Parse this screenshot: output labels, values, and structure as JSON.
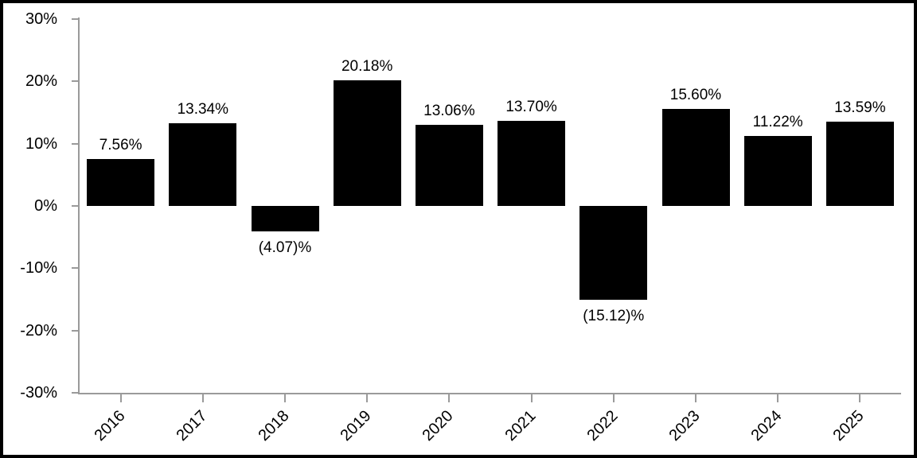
{
  "chart_data": {
    "type": "bar",
    "title": "",
    "xlabel": "",
    "ylabel": "",
    "categories": [
      "2016",
      "2017",
      "2018",
      "2019",
      "2020",
      "2021",
      "2022",
      "2023",
      "2024",
      "2025"
    ],
    "values": [
      7.56,
      13.34,
      -4.07,
      20.18,
      13.06,
      13.7,
      -15.12,
      15.6,
      11.22,
      13.59
    ],
    "value_labels": [
      "7.56%",
      "13.34%",
      "(4.07)%",
      "20.18%",
      "13.06%",
      "13.70%",
      "(15.12)%",
      "15.60%",
      "11.22%",
      "13.59%"
    ],
    "ylim": [
      -30,
      30
    ],
    "yticks": [
      30,
      20,
      10,
      0,
      -10,
      -20,
      -30
    ],
    "ytick_labels": [
      "30%",
      "20%",
      "10%",
      "0%",
      "-10%",
      "-20%",
      "-30%"
    ],
    "grid": false,
    "legend": null,
    "colors": {
      "bar": "#000000",
      "axis": "#9a9a9a",
      "text": "#000000",
      "background": "#ffffff",
      "border": "#000000"
    }
  }
}
